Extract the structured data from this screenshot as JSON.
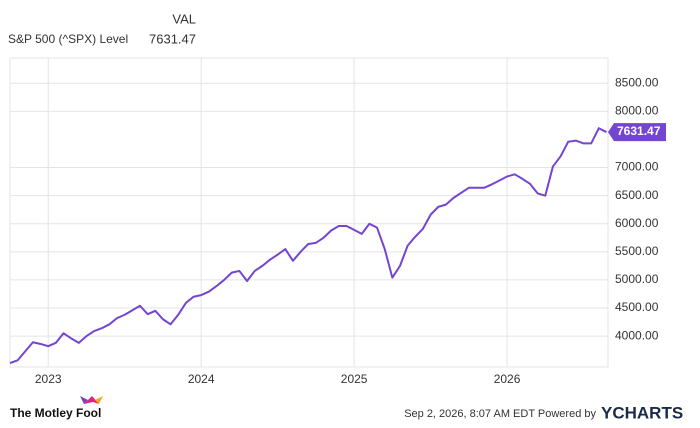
{
  "chart_data": {
    "type": "line",
    "legend_header": "VAL",
    "x": [
      2022.75,
      2022.8,
      2022.85,
      2022.9,
      2022.95,
      2023.0,
      2023.05,
      2023.1,
      2023.15,
      2023.2,
      2023.25,
      2023.3,
      2023.35,
      2023.4,
      2023.45,
      2023.5,
      2023.55,
      2023.6,
      2023.65,
      2023.7,
      2023.75,
      2023.8,
      2023.85,
      2023.9,
      2023.95,
      2024.0,
      2024.05,
      2024.1,
      2024.15,
      2024.2,
      2024.25,
      2024.3,
      2024.35,
      2024.4,
      2024.45,
      2024.5,
      2024.55,
      2024.6,
      2024.65,
      2024.7,
      2024.75,
      2024.8,
      2024.85,
      2024.9,
      2024.95,
      2025.0,
      2025.05,
      2025.1,
      2025.15,
      2025.2,
      2025.25,
      2025.3,
      2025.35,
      2025.4,
      2025.45,
      2025.5,
      2025.55,
      2025.6,
      2025.65,
      2025.7,
      2025.75,
      2025.8,
      2025.85,
      2025.9,
      2025.95,
      2026.0,
      2026.05,
      2026.1,
      2026.15,
      2026.2,
      2026.25,
      2026.3,
      2026.35,
      2026.4,
      2026.45,
      2026.5,
      2026.55,
      2026.6,
      2026.65
    ],
    "series": [
      {
        "name": "S&P 500 (^SPX) Level",
        "color": "#7445d1",
        "values": [
          3520,
          3570,
          3730,
          3890,
          3860,
          3820,
          3880,
          4050,
          3960,
          3880,
          4000,
          4090,
          4140,
          4210,
          4320,
          4380,
          4460,
          4540,
          4390,
          4450,
          4300,
          4210,
          4380,
          4590,
          4700,
          4730,
          4790,
          4890,
          5000,
          5130,
          5160,
          4980,
          5160,
          5250,
          5360,
          5450,
          5550,
          5340,
          5500,
          5640,
          5660,
          5750,
          5880,
          5960,
          5960,
          5890,
          5820,
          6000,
          5930,
          5550,
          5040,
          5250,
          5610,
          5770,
          5910,
          6160,
          6300,
          6340,
          6460,
          6550,
          6640,
          6640,
          6640,
          6700,
          6770,
          6840,
          6880,
          6800,
          6710,
          6540,
          6500,
          7020,
          7200,
          7460,
          7480,
          7430,
          7430,
          7700,
          7631.47
        ]
      }
    ],
    "xlim": [
      2022.75,
      2026.66
    ],
    "xticks": [
      2023,
      2024,
      2025,
      2026
    ],
    "ylim": [
      3450,
      8950
    ],
    "yticks": [
      {
        "value": 4000,
        "label": "4000.00"
      },
      {
        "value": 4500,
        "label": "4500.00"
      },
      {
        "value": 5000,
        "label": "5000.00"
      },
      {
        "value": 5500,
        "label": "5500.00"
      },
      {
        "value": 6000,
        "label": "6000.00"
      },
      {
        "value": 6500,
        "label": "6500.00"
      },
      {
        "value": 7000,
        "label": "7000.00"
      },
      {
        "value": 8000,
        "label": "8000.00"
      },
      {
        "value": 8500,
        "label": "8500.00"
      }
    ],
    "grid": true
  },
  "footer": {
    "brand": "The Motley Fool",
    "timestamp": "Sep 2, 2026, 8:07 AM EDT Powered by",
    "provider": "YCHARTS"
  }
}
